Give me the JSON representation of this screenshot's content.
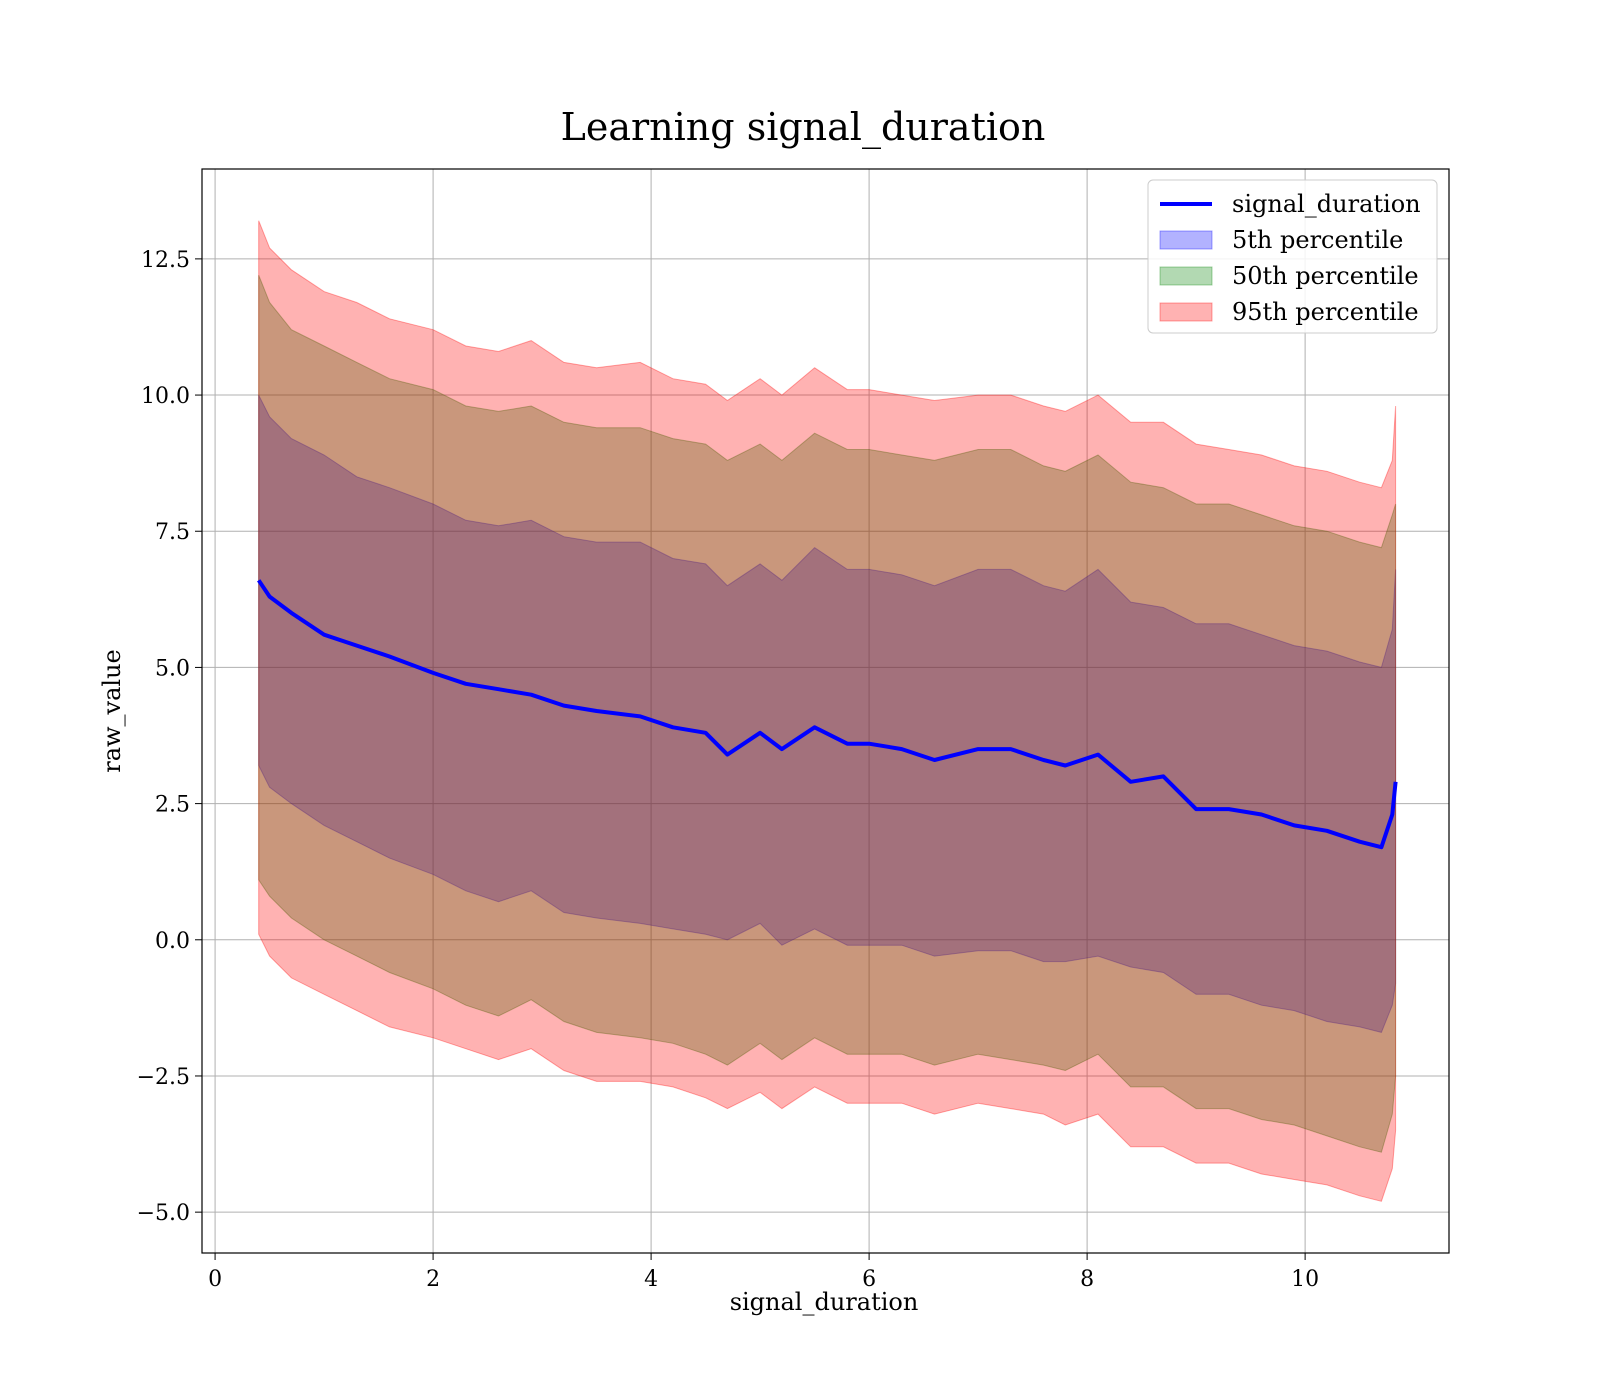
{
  "chart_data": {
    "type": "area",
    "title": "Learning signal_duration",
    "xlabel": "signal_duration",
    "ylabel": "raw_value",
    "xlim": [
      -0.12,
      11.32
    ],
    "ylim": [
      -5.75,
      14.15
    ],
    "xticks": [
      0,
      2,
      4,
      6,
      8,
      10
    ],
    "xtick_labels": [
      "0",
      "2",
      "4",
      "6",
      "8",
      "10"
    ],
    "yticks": [
      -5.0,
      -2.5,
      0.0,
      2.5,
      5.0,
      7.5,
      10.0,
      12.5
    ],
    "ytick_labels": [
      "−5.0",
      "−2.5",
      "0.0",
      "2.5",
      "5.0",
      "7.5",
      "10.0",
      "12.5"
    ],
    "grid": true,
    "legend_position": "top-right",
    "x": [
      0.4,
      0.5,
      0.7,
      1.0,
      1.3,
      1.6,
      2.0,
      2.3,
      2.6,
      2.9,
      3.2,
      3.5,
      3.9,
      4.2,
      4.5,
      4.7,
      5.0,
      5.2,
      5.5,
      5.8,
      6.0,
      6.3,
      6.6,
      7.0,
      7.3,
      7.6,
      7.8,
      8.1,
      8.4,
      8.7,
      9.0,
      9.3,
      9.6,
      9.9,
      10.2,
      10.5,
      10.7,
      10.8,
      10.83
    ],
    "series": [
      {
        "name": "signal_duration",
        "kind": "line",
        "color": "#0000ff",
        "values": [
          6.6,
          6.3,
          6.0,
          5.6,
          5.4,
          5.2,
          4.9,
          4.7,
          4.6,
          4.5,
          4.3,
          4.2,
          4.1,
          3.9,
          3.8,
          3.4,
          3.8,
          3.5,
          3.9,
          3.6,
          3.6,
          3.5,
          3.3,
          3.5,
          3.5,
          3.3,
          3.2,
          3.4,
          2.9,
          3.0,
          2.4,
          2.4,
          2.3,
          2.1,
          2.0,
          1.8,
          1.7,
          2.3,
          2.9
        ]
      },
      {
        "name": "5th percentile",
        "kind": "band",
        "color": "#0000ff",
        "lower": [
          3.2,
          2.8,
          2.5,
          2.1,
          1.8,
          1.5,
          1.2,
          0.9,
          0.7,
          0.9,
          0.5,
          0.4,
          0.3,
          0.2,
          0.1,
          0.0,
          0.3,
          -0.1,
          0.2,
          -0.1,
          -0.1,
          -0.1,
          -0.3,
          -0.2,
          -0.2,
          -0.4,
          -0.4,
          -0.3,
          -0.5,
          -0.6,
          -1.0,
          -1.0,
          -1.2,
          -1.3,
          -1.5,
          -1.6,
          -1.7,
          -1.2,
          -0.8
        ],
        "upper": [
          10.0,
          9.6,
          9.2,
          8.9,
          8.5,
          8.3,
          8.0,
          7.7,
          7.6,
          7.7,
          7.4,
          7.3,
          7.3,
          7.0,
          6.9,
          6.5,
          6.9,
          6.6,
          7.2,
          6.8,
          6.8,
          6.7,
          6.5,
          6.8,
          6.8,
          6.5,
          6.4,
          6.8,
          6.2,
          6.1,
          5.8,
          5.8,
          5.6,
          5.4,
          5.3,
          5.1,
          5.0,
          5.7,
          6.8
        ]
      },
      {
        "name": "50th percentile",
        "kind": "band",
        "color": "#008000",
        "lower": [
          1.1,
          0.8,
          0.4,
          0.0,
          -0.3,
          -0.6,
          -0.9,
          -1.2,
          -1.4,
          -1.1,
          -1.5,
          -1.7,
          -1.8,
          -1.9,
          -2.1,
          -2.3,
          -1.9,
          -2.2,
          -1.8,
          -2.1,
          -2.1,
          -2.1,
          -2.3,
          -2.1,
          -2.2,
          -2.3,
          -2.4,
          -2.1,
          -2.7,
          -2.7,
          -3.1,
          -3.1,
          -3.3,
          -3.4,
          -3.6,
          -3.8,
          -3.9,
          -3.2,
          -2.5
        ],
        "upper": [
          12.2,
          11.7,
          11.2,
          10.9,
          10.6,
          10.3,
          10.1,
          9.8,
          9.7,
          9.8,
          9.5,
          9.4,
          9.4,
          9.2,
          9.1,
          8.8,
          9.1,
          8.8,
          9.3,
          9.0,
          9.0,
          8.9,
          8.8,
          9.0,
          9.0,
          8.7,
          8.6,
          8.9,
          8.4,
          8.3,
          8.0,
          8.0,
          7.8,
          7.6,
          7.5,
          7.3,
          7.2,
          7.8,
          8.0
        ]
      },
      {
        "name": "95th percentile",
        "kind": "band",
        "color": "#ff0000",
        "lower": [
          0.1,
          -0.3,
          -0.7,
          -1.0,
          -1.3,
          -1.6,
          -1.8,
          -2.0,
          -2.2,
          -2.0,
          -2.4,
          -2.6,
          -2.6,
          -2.7,
          -2.9,
          -3.1,
          -2.8,
          -3.1,
          -2.7,
          -3.0,
          -3.0,
          -3.0,
          -3.2,
          -3.0,
          -3.1,
          -3.2,
          -3.4,
          -3.2,
          -3.8,
          -3.8,
          -4.1,
          -4.1,
          -4.3,
          -4.4,
          -4.5,
          -4.7,
          -4.8,
          -4.2,
          -3.5
        ],
        "upper": [
          13.2,
          12.7,
          12.3,
          11.9,
          11.7,
          11.4,
          11.2,
          10.9,
          10.8,
          11.0,
          10.6,
          10.5,
          10.6,
          10.3,
          10.2,
          9.9,
          10.3,
          10.0,
          10.5,
          10.1,
          10.1,
          10.0,
          9.9,
          10.0,
          10.0,
          9.8,
          9.7,
          10.0,
          9.5,
          9.5,
          9.1,
          9.0,
          8.9,
          8.7,
          8.6,
          8.4,
          8.3,
          8.8,
          9.8
        ]
      }
    ]
  }
}
